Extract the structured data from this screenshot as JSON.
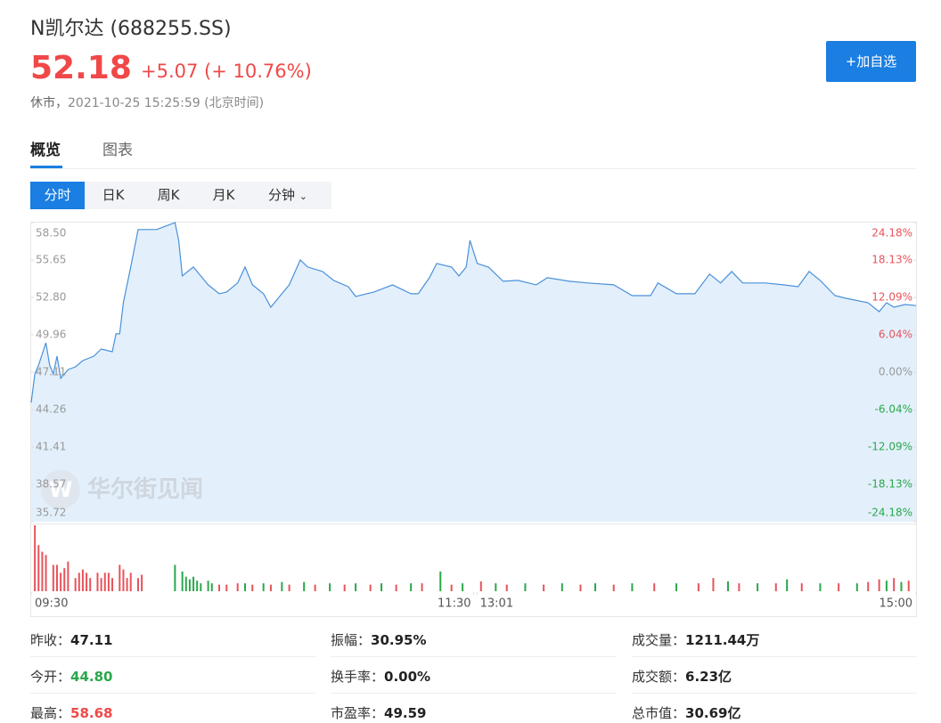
{
  "header": {
    "name": "N凯尔达",
    "code": "(688255.SS)",
    "price": "52.18",
    "change": "+5.07",
    "change_pct": "(+ 10.76%)",
    "status": "休市，",
    "time": "2021-10-25 15:25:59",
    "tz": "(北京时间)",
    "button": "+加自选"
  },
  "tabs": [
    "概览",
    "图表"
  ],
  "periods": [
    "分时",
    "日K",
    "周K",
    "月K",
    "分钟"
  ],
  "watermark": "华尔街见闻",
  "chart_data": {
    "type": "line",
    "line_color": "#4a90d9",
    "fill_color": "#e3f0fc",
    "grid": false,
    "x": [
      0,
      1,
      2,
      4,
      5,
      6,
      7,
      8,
      10,
      12,
      14,
      17,
      19,
      22,
      23,
      24,
      25,
      27,
      29,
      34,
      39,
      40,
      41,
      44,
      46,
      48,
      51,
      53,
      56,
      58,
      60,
      63,
      65,
      68,
      70,
      73,
      75,
      79,
      82,
      86,
      88,
      93,
      98,
      103,
      105,
      108,
      110,
      114,
      116,
      118,
      119,
      121,
      124,
      128,
      132,
      137,
      140,
      146,
      151,
      158,
      163,
      168,
      170,
      175,
      180,
      184,
      187,
      190,
      193,
      199,
      204,
      208,
      211,
      214,
      218,
      221,
      227,
      230,
      232,
      234,
      237,
      240
    ],
    "values": [
      44.8,
      46.97,
      47.65,
      49.35,
      47.65,
      46.97,
      48.33,
      46.64,
      47.31,
      47.52,
      47.99,
      48.33,
      48.87,
      48.67,
      50.03,
      50.03,
      52.4,
      55.12,
      57.97,
      57.97,
      58.5,
      57.15,
      54.44,
      55.12,
      54.44,
      53.76,
      53.08,
      53.22,
      53.9,
      55.12,
      53.76,
      53.08,
      52.06,
      53.08,
      53.76,
      55.66,
      55.12,
      54.78,
      54.1,
      53.62,
      52.88,
      53.22,
      53.76,
      53.08,
      53.08,
      54.3,
      55.39,
      55.12,
      54.44,
      55.12,
      57.15,
      55.39,
      55.12,
      54.03,
      54.1,
      53.76,
      54.3,
      54.03,
      53.9,
      53.76,
      52.94,
      52.94,
      53.9,
      53.08,
      53.08,
      54.58,
      53.9,
      54.78,
      53.9,
      53.9,
      53.76,
      53.62,
      54.78,
      54.1,
      52.94,
      52.74,
      52.4,
      51.72,
      52.4,
      52.06,
      52.26,
      52.18
    ],
    "xlim": [
      0,
      240
    ],
    "xticks": [
      {
        "value": 0,
        "label": "09:30"
      },
      {
        "value": 120,
        "label": "11:30"
      },
      {
        "value": 121,
        "label": "13:01"
      },
      {
        "value": 240,
        "label": "15:00"
      }
    ],
    "ylim": [
      35.72,
      58.5
    ],
    "yticks": [
      {
        "value": 58.5,
        "label": "58.50"
      },
      55.65,
      {
        "value": 52.8,
        "label": "52.80"
      },
      49.96,
      47.11,
      44.26,
      41.41,
      38.57,
      35.72
    ],
    "y2lim": [
      -24.18,
      24.18
    ],
    "y2ticks": [
      {
        "value": 24.18,
        "label": "24.18%"
      },
      {
        "value": 18.13,
        "label": "18.13%"
      },
      {
        "value": 12.09,
        "label": "12.09%"
      },
      {
        "value": 6.04,
        "label": "6.04%"
      },
      {
        "value": 0,
        "label": "0.00%"
      },
      {
        "value": -6.04,
        "label": "-6.04%"
      },
      {
        "value": -12.09,
        "label": "-12.09%"
      },
      {
        "value": -18.13,
        "label": "-18.13%"
      },
      {
        "value": -24.18,
        "label": "-24.18%"
      }
    ],
    "up_color": "#e8535a",
    "down_color": "#2aa84a",
    "flat_color": "#999",
    "volume": {
      "ylim": [
        0,
        100
      ],
      "series": [
        {
          "color": "#e8535a",
          "x": [
            1,
            2,
            3,
            4,
            6,
            7,
            8,
            9,
            10,
            12,
            13,
            14,
            15,
            16,
            18,
            19,
            20,
            21,
            22,
            24,
            25,
            26,
            27,
            29,
            30,
            51,
            53,
            56,
            60,
            65,
            70,
            77,
            85,
            92,
            99,
            106,
            114,
            122,
            129,
            139,
            149,
            158,
            169,
            181,
            185,
            192,
            202,
            209,
            219,
            227,
            230,
            234,
            238
          ],
          "values": [
            100,
            70,
            60,
            55,
            40,
            40,
            28,
            35,
            45,
            20,
            28,
            33,
            28,
            20,
            28,
            20,
            28,
            28,
            20,
            40,
            33,
            20,
            28,
            20,
            25,
            10,
            10,
            12,
            10,
            10,
            10,
            10,
            10,
            10,
            10,
            12,
            10,
            15,
            10,
            10,
            10,
            10,
            12,
            12,
            20,
            12,
            12,
            12,
            12,
            14,
            18,
            20,
            16
          ]
        },
        {
          "color": "#2aa84a",
          "x": [
            39,
            41,
            42,
            43,
            44,
            45,
            46,
            48,
            49,
            58,
            63,
            68,
            74,
            81,
            88,
            95,
            103,
            111,
            117,
            126,
            134,
            144,
            153,
            163,
            175,
            189,
            197,
            205,
            214,
            224,
            232,
            236
          ],
          "values": [
            40,
            30,
            22,
            18,
            22,
            16,
            12,
            16,
            12,
            12,
            12,
            14,
            14,
            12,
            12,
            12,
            12,
            30,
            12,
            12,
            12,
            12,
            12,
            12,
            12,
            15,
            12,
            18,
            12,
            12,
            16,
            14
          ]
        }
      ]
    }
  },
  "stats": [
    [
      {
        "label": "昨收：",
        "value": "47.11"
      },
      {
        "label": "振幅：",
        "value": "30.95%"
      },
      {
        "label": "成交量：",
        "value": "1211.44万"
      }
    ],
    [
      {
        "label": "今开：",
        "value": "44.80",
        "color": "#2aa84a"
      },
      {
        "label": "换手率：",
        "value": "0.00%"
      },
      {
        "label": "成交额：",
        "value": "6.23亿"
      }
    ],
    [
      {
        "label": "最高：",
        "value": "58.68",
        "color": "#f04848"
      },
      {
        "label": "市盈率：",
        "value": "49.59"
      },
      {
        "label": "总市值：",
        "value": "30.69亿"
      }
    ]
  ]
}
